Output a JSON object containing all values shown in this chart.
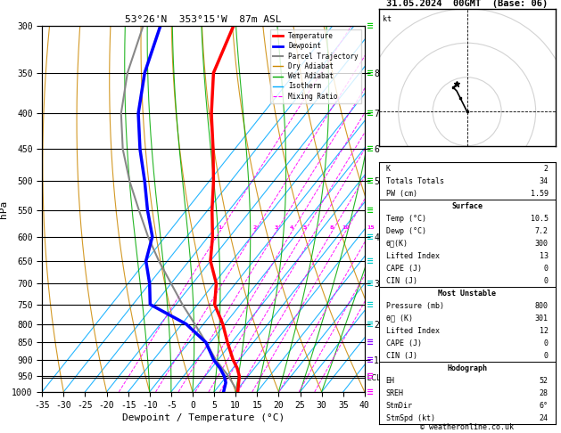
{
  "title_left": "53°26'N  353°15'W  87m ASL",
  "title_right": "31.05.2024  00GMT  (Base: 06)",
  "xlabel": "Dewpoint / Temperature (°C)",
  "ylabel_left": "hPa",
  "pressure_ticks": [
    300,
    350,
    400,
    450,
    500,
    550,
    600,
    650,
    700,
    750,
    800,
    850,
    900,
    950,
    1000
  ],
  "temp_min": -35,
  "temp_max": 40,
  "skew_factor": 0.9,
  "isotherm_values": [
    -35,
    -30,
    -25,
    -20,
    -15,
    -10,
    -5,
    0,
    5,
    10,
    15,
    20,
    25,
    30,
    35,
    40
  ],
  "dry_adiabat_values": [
    -30,
    -20,
    -10,
    0,
    10,
    20,
    30,
    40,
    50,
    60
  ],
  "wet_adiabat_values": [
    -10,
    -5,
    0,
    5,
    10,
    15,
    20,
    25,
    30
  ],
  "mixing_ratio_values": [
    1,
    2,
    3,
    4,
    5,
    6,
    8,
    10,
    15,
    20,
    25
  ],
  "km_ticks": [
    1,
    2,
    3,
    4,
    5,
    6,
    7,
    8
  ],
  "km_pressures": [
    900,
    800,
    700,
    600,
    500,
    450,
    400,
    350
  ],
  "lcl_pressure": 955,
  "colors": {
    "temperature": "#ff0000",
    "dewpoint": "#0000ff",
    "parcel": "#888888",
    "dry_adiabat": "#cc8800",
    "wet_adiabat": "#00aa00",
    "isotherm": "#00aaff",
    "mixing_ratio": "#ff00ff",
    "background": "#ffffff",
    "grid": "#000000"
  },
  "temp_profile_p": [
    1000,
    970,
    950,
    925,
    900,
    850,
    800,
    750,
    700,
    650,
    600,
    550,
    500,
    450,
    400,
    350,
    300
  ],
  "temp_profile_t": [
    10.5,
    9.0,
    8.0,
    6.0,
    3.5,
    -1.0,
    -5.5,
    -11.0,
    -14.5,
    -20.0,
    -24.0,
    -29.0,
    -34.0,
    -40.0,
    -47.0,
    -54.0,
    -58.0
  ],
  "dewp_profile_p": [
    1000,
    970,
    950,
    925,
    900,
    850,
    800,
    750,
    700,
    650,
    600,
    550,
    500,
    450,
    400,
    350,
    300
  ],
  "dewp_profile_t": [
    7.2,
    6.0,
    4.5,
    2.0,
    -1.0,
    -6.0,
    -14.0,
    -26.0,
    -30.0,
    -35.0,
    -38.0,
    -44.0,
    -50.0,
    -57.0,
    -64.0,
    -70.0,
    -75.0
  ],
  "parcel_profile_p": [
    1000,
    970,
    950,
    925,
    900,
    850,
    800,
    750,
    700,
    650,
    600,
    550,
    500,
    450,
    400,
    350,
    300
  ],
  "parcel_profile_t": [
    10.5,
    7.5,
    5.5,
    2.5,
    -0.5,
    -6.0,
    -12.0,
    -18.5,
    -25.0,
    -32.0,
    -39.0,
    -46.0,
    -53.5,
    -61.0,
    -68.0,
    -74.0,
    -79.0
  ],
  "mr_right_values": [
    1,
    2,
    3,
    4,
    5,
    6
  ],
  "mr_right_pressures": [
    905,
    810,
    715,
    660,
    610,
    560
  ],
  "wind_colors_by_pressure": {
    "1000": "#ff00ff",
    "950": "#ff00ff",
    "900": "#8800ff",
    "850": "#8800ff",
    "800": "#00cccc",
    "750": "#00cccc",
    "700": "#00cccc",
    "650": "#00cccc",
    "600": "#00cccc",
    "550": "#00cc00",
    "500": "#00cc00",
    "450": "#00cc00",
    "400": "#00cc00",
    "350": "#00cc00",
    "300": "#00cc00"
  }
}
